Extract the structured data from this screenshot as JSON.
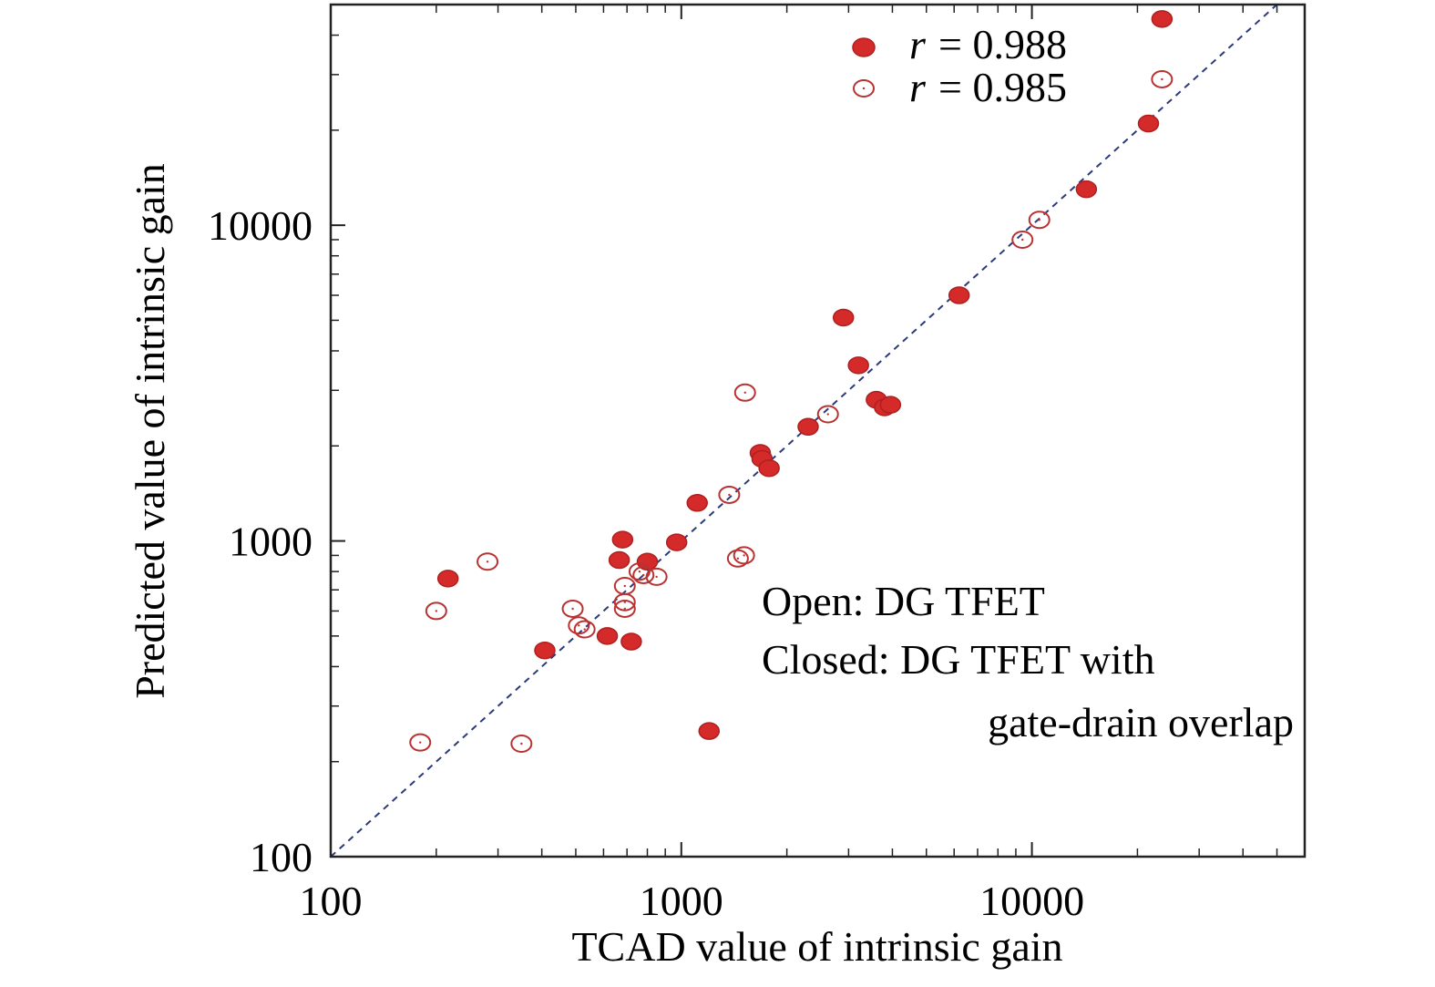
{
  "chart_data": {
    "type": "scatter",
    "title": "",
    "xlabel": "TCAD value of intrinsic gain",
    "ylabel": "Predicted value of intrinsic gain",
    "xscale": "log",
    "yscale": "log",
    "xlim": [
      100,
      60000
    ],
    "ylim": [
      100,
      50000
    ],
    "x_ticks": [
      100,
      1000,
      10000
    ],
    "y_ticks": [
      100,
      1000,
      10000
    ],
    "x_tick_labels": [
      "100",
      "1000",
      "10000"
    ],
    "y_tick_labels": [
      "100",
      "1000",
      "10000"
    ],
    "grid": false,
    "reference_line": "y = x",
    "legend_position": "top-right",
    "colors": {
      "closed": "#d42a2a",
      "open": "#b83232",
      "diagonal": "#2b3a7a",
      "axis": "#222222"
    },
    "series": [
      {
        "marker": "filled",
        "legend_var": "r",
        "legend_value": "= 0.988",
        "points": [
          [
            216,
            760
          ],
          [
            408,
            450
          ],
          [
            615,
            500
          ],
          [
            665,
            870
          ],
          [
            680,
            1010
          ],
          [
            720,
            480
          ],
          [
            800,
            860
          ],
          [
            970,
            990
          ],
          [
            1110,
            1320
          ],
          [
            1200,
            250
          ],
          [
            1680,
            1900
          ],
          [
            1700,
            1820
          ],
          [
            1780,
            1700
          ],
          [
            2300,
            2300
          ],
          [
            2900,
            5100
          ],
          [
            3200,
            3600
          ],
          [
            3600,
            2800
          ],
          [
            3800,
            2650
          ],
          [
            3950,
            2700
          ],
          [
            6200,
            6000
          ],
          [
            14300,
            13000
          ],
          [
            21500,
            21000
          ],
          [
            23500,
            45000
          ]
        ]
      },
      {
        "marker": "open",
        "legend_var": "r",
        "legend_value": "= 0.985",
        "points": [
          [
            180,
            230
          ],
          [
            200,
            600
          ],
          [
            280,
            860
          ],
          [
            350,
            228
          ],
          [
            490,
            610
          ],
          [
            510,
            540
          ],
          [
            530,
            525
          ],
          [
            690,
            720
          ],
          [
            690,
            640
          ],
          [
            690,
            610
          ],
          [
            760,
            800
          ],
          [
            780,
            780
          ],
          [
            850,
            770
          ],
          [
            1370,
            1400
          ],
          [
            1450,
            880
          ],
          [
            1510,
            900
          ],
          [
            1520,
            2950
          ],
          [
            2620,
            2520
          ],
          [
            9400,
            9000
          ],
          [
            10500,
            10400
          ],
          [
            23500,
            29000
          ]
        ]
      }
    ],
    "annotations": [
      "Open: DG TFET",
      "Closed: DG TFET with",
      "gate-drain overlap"
    ]
  }
}
